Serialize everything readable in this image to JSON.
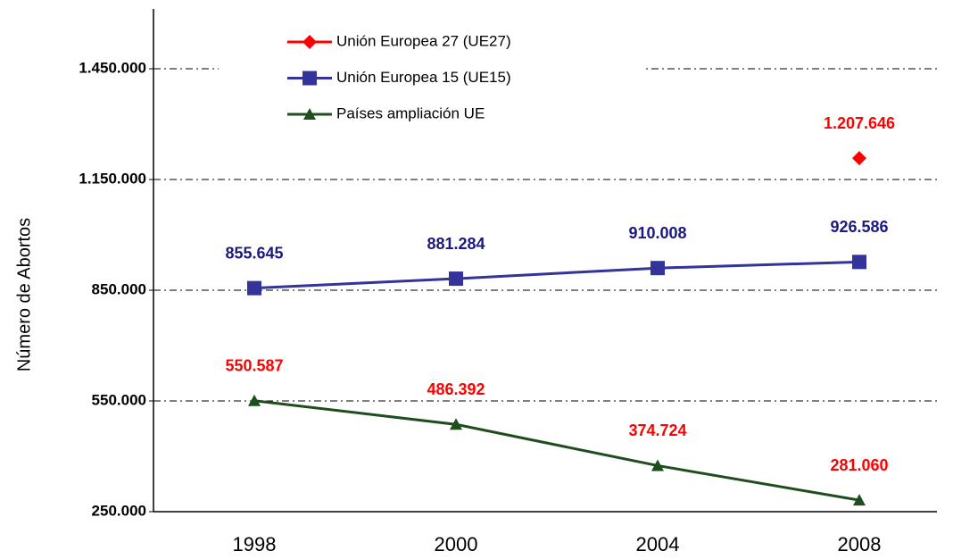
{
  "chart_data": {
    "type": "line",
    "y_label": "Número de Abortos",
    "categories": [
      "1998",
      "2000",
      "2004",
      "2008"
    ],
    "ylim": [
      250000,
      1600000
    ],
    "yticks": [
      {
        "value": 250000,
        "label": "250.000"
      },
      {
        "value": 550000,
        "label": "550.000"
      },
      {
        "value": 850000,
        "label": "850.000"
      },
      {
        "value": 1150000,
        "label": "1.150.000"
      },
      {
        "value": 1450000,
        "label": "1.450.000"
      }
    ],
    "grid": true,
    "series": [
      {
        "name": "Unión Europea 27 (UE27)",
        "color": "#ff0000",
        "marker": "diamond",
        "label_color": "#ff0000",
        "values": [
          null,
          null,
          null,
          1207646
        ],
        "value_labels": [
          null,
          null,
          null,
          "1.207.646"
        ]
      },
      {
        "name": "Unión Europea 15 (UE15)",
        "color": "#333399",
        "marker": "square",
        "label_color": "#1a1a80",
        "values": [
          855645,
          881284,
          910008,
          926586
        ],
        "value_labels": [
          "855.645",
          "881.284",
          "910.008",
          "926.586"
        ]
      },
      {
        "name": "Países ampliación UE",
        "color": "#1e4d1e",
        "marker": "triangle",
        "label_color": "#ff0000",
        "values": [
          550587,
          486392,
          374724,
          281060
        ],
        "value_labels": [
          "550.587",
          "486.392",
          "374.724",
          "281.060"
        ]
      }
    ]
  }
}
